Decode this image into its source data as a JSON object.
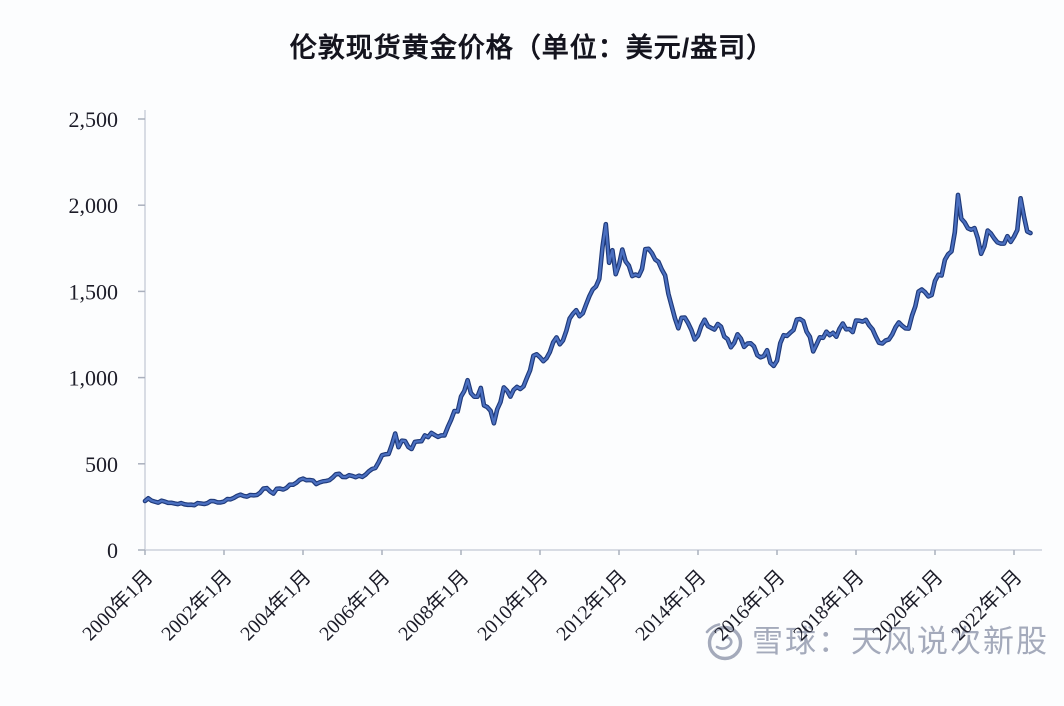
{
  "title": "伦敦现货黄金价格（单位：美元/盎司）",
  "watermark": {
    "logo": "xueqiu-snowball-logo",
    "text": "雪球：天风说次新股",
    "color": "#a4aabb"
  },
  "chart_data": {
    "type": "line",
    "title": "伦敦现货黄金价格（单位：美元/盎司）",
    "unit": "美元/盎司",
    "frequency": "monthly",
    "x_start": "2000-01",
    "x_end": "2022-06",
    "x_tick_labels": [
      "2000年1月",
      "2002年1月",
      "2004年1月",
      "2006年1月",
      "2008年1月",
      "2010年1月",
      "2012年1月",
      "2014年1月",
      "2016年1月",
      "2018年1月",
      "2020年1月",
      "2022年1月"
    ],
    "x_tick_interval_months": 24,
    "y_ticks": [
      0,
      500,
      1000,
      1500,
      2000,
      2500
    ],
    "y_tick_labels": [
      "0",
      "500",
      "1,000",
      "1,500",
      "2,000",
      "2,500"
    ],
    "ylim": [
      0,
      2500
    ],
    "grid": false,
    "legend": "none",
    "line_color": "#4a6fc0",
    "line_edge_color": "#1f3a7a",
    "axis_color": "#ccd1db",
    "tick_color": "#aab0bd",
    "series": [
      {
        "name": "伦敦现货黄金价格",
        "values": [
          284,
          300,
          286,
          280,
          275,
          286,
          281,
          274,
          274,
          270,
          266,
          272,
          265,
          262,
          263,
          260,
          272,
          270,
          267,
          272,
          284,
          283,
          276,
          276,
          281,
          295,
          294,
          302,
          314,
          321,
          313,
          310,
          319,
          317,
          319,
          333,
          357,
          359,
          340,
          328,
          355,
          356,
          351,
          360,
          379,
          379,
          390,
          407,
          414,
          405,
          406,
          403,
          383,
          392,
          398,
          400,
          405,
          420,
          439,
          442,
          424,
          423,
          434,
          429,
          422,
          431,
          424,
          437,
          456,
          470,
          476,
          510,
          550,
          555,
          557,
          611,
          676,
          596,
          634,
          632,
          598,
          586,
          627,
          630,
          631,
          665,
          655,
          679,
          667,
          656,
          665,
          665,
          713,
          755,
          806,
          804,
          890,
          922,
          985,
          910,
          889,
          889,
          940,
          839,
          829,
          807,
          735,
          816,
          858,
          943,
          924,
          890,
          929,
          946,
          934,
          949,
          997,
          1043,
          1127,
          1135,
          1118,
          1095,
          1113,
          1149,
          1205,
          1233,
          1193,
          1216,
          1271,
          1342,
          1370,
          1391,
          1356,
          1373,
          1424,
          1473,
          1511,
          1529,
          1573,
          1757,
          1890,
          1666,
          1739,
          1600,
          1654,
          1743,
          1674,
          1649,
          1589,
          1598,
          1590,
          1630,
          1745,
          1747,
          1722,
          1685,
          1671,
          1627,
          1593,
          1486,
          1414,
          1343,
          1286,
          1347,
          1348,
          1316,
          1276,
          1221,
          1244,
          1300,
          1336,
          1299,
          1288,
          1279,
          1311,
          1296,
          1238,
          1223,
          1176,
          1201,
          1251,
          1227,
          1178,
          1197,
          1199,
          1181,
          1130,
          1118,
          1125,
          1159,
          1086,
          1068,
          1098,
          1200,
          1246,
          1242,
          1260,
          1276,
          1337,
          1340,
          1327,
          1266,
          1236,
          1152,
          1192,
          1234,
          1231,
          1266,
          1246,
          1260,
          1237,
          1283,
          1314,
          1280,
          1282,
          1264,
          1331,
          1330,
          1325,
          1335,
          1303,
          1281,
          1238,
          1202,
          1198,
          1215,
          1221,
          1250,
          1292,
          1320,
          1301,
          1286,
          1284,
          1359,
          1413,
          1499,
          1511,
          1495,
          1471,
          1479,
          1561,
          1597,
          1592,
          1683,
          1716,
          1732,
          1843,
          2060,
          1922,
          1900,
          1866,
          1858,
          1867,
          1808,
          1718,
          1762,
          1853,
          1835,
          1807,
          1784,
          1777,
          1777,
          1820,
          1787,
          1817,
          1856,
          2040,
          1937,
          1848,
          1838
        ]
      }
    ]
  }
}
